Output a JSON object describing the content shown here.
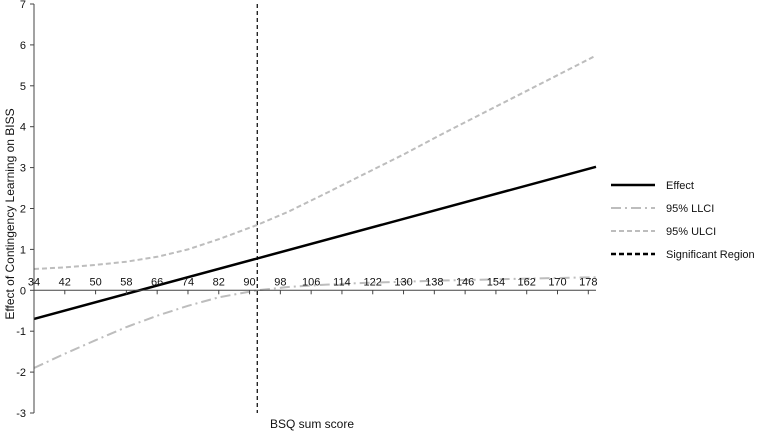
{
  "chart_data": {
    "type": "line",
    "title": "",
    "xlabel": "BSQ sum score",
    "ylabel": "Effect of Contingency Learning on BISS",
    "x_ticks": [
      "34",
      "42",
      "50",
      "58",
      "66",
      "74",
      "82",
      "90",
      "98",
      "106",
      "114",
      "122",
      "130",
      "138",
      "146",
      "154",
      "162",
      "170",
      "178"
    ],
    "y_ticks": [
      "-3",
      "-2",
      "-1",
      "0",
      "1",
      "2",
      "3",
      "4",
      "5",
      "6",
      "7"
    ],
    "xlim": [
      34,
      180
    ],
    "ylim": [
      -3,
      7
    ],
    "grid": false,
    "legend_position": "right",
    "significant_region_x": 92,
    "series": [
      {
        "name": "Effect",
        "style": "solid",
        "color": "#000000",
        "x": [
          34,
          180
        ],
        "y": [
          -0.7,
          3.02
        ]
      },
      {
        "name": "95% LLCI",
        "style": "dashdot",
        "color": "#bdbdbd",
        "x": [
          34,
          42,
          50,
          58,
          66,
          74,
          82,
          92,
          100,
          110,
          120,
          130,
          140,
          150,
          160,
          170,
          180
        ],
        "y": [
          -1.9,
          -1.55,
          -1.22,
          -0.9,
          -0.62,
          -0.38,
          -0.17,
          0.0,
          0.08,
          0.14,
          0.18,
          0.21,
          0.24,
          0.26,
          0.28,
          0.3,
          0.32
        ]
      },
      {
        "name": "95% ULCI",
        "style": "dashed",
        "color": "#bdbdbd",
        "x": [
          34,
          42,
          50,
          58,
          66,
          74,
          82,
          92,
          100,
          110,
          120,
          130,
          140,
          150,
          160,
          170,
          180
        ],
        "y": [
          0.52,
          0.56,
          0.62,
          0.7,
          0.82,
          1.0,
          1.25,
          1.6,
          1.92,
          2.38,
          2.85,
          3.32,
          3.82,
          4.3,
          4.78,
          5.26,
          5.74
        ]
      },
      {
        "name": "Significant Region",
        "style": "dashed-black",
        "color": "#000000"
      }
    ]
  }
}
